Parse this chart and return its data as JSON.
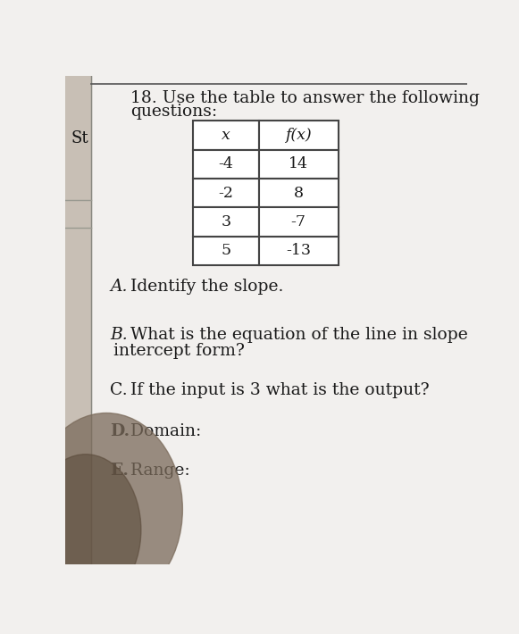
{
  "title_line1": "18. Use the table to answer the following",
  "title_line2": "questions:",
  "left_label": "St",
  "table_headers": [
    "x",
    "f(x)"
  ],
  "table_rows": [
    [
      "-4",
      "14"
    ],
    [
      "-2",
      "8"
    ],
    [
      "3",
      "-7"
    ],
    [
      "5",
      "-13"
    ]
  ],
  "questions": [
    {
      "label": "A.",
      "text": "Identify the slope.",
      "style": "italic_label"
    },
    {
      "label": "B.",
      "text": "What is the equation of the line in slope\nintercept form?",
      "style": "italic_label"
    },
    {
      "label": "C.",
      "text": "If the input is 3 what is the output?",
      "style": "normal"
    },
    {
      "label": "D.",
      "text": "Domain:",
      "style": "bold_label"
    },
    {
      "label": "E.",
      "text": "Range:",
      "style": "bold_label"
    }
  ],
  "paper_color": "#f2f0ee",
  "paper_color2": "#e8e5e2",
  "table_bg": "#ffffff",
  "text_color": "#1a1a1a",
  "line_color": "#444444",
  "left_strip_color": "#c8bfb5",
  "shadow_color": "#7a6a5a"
}
